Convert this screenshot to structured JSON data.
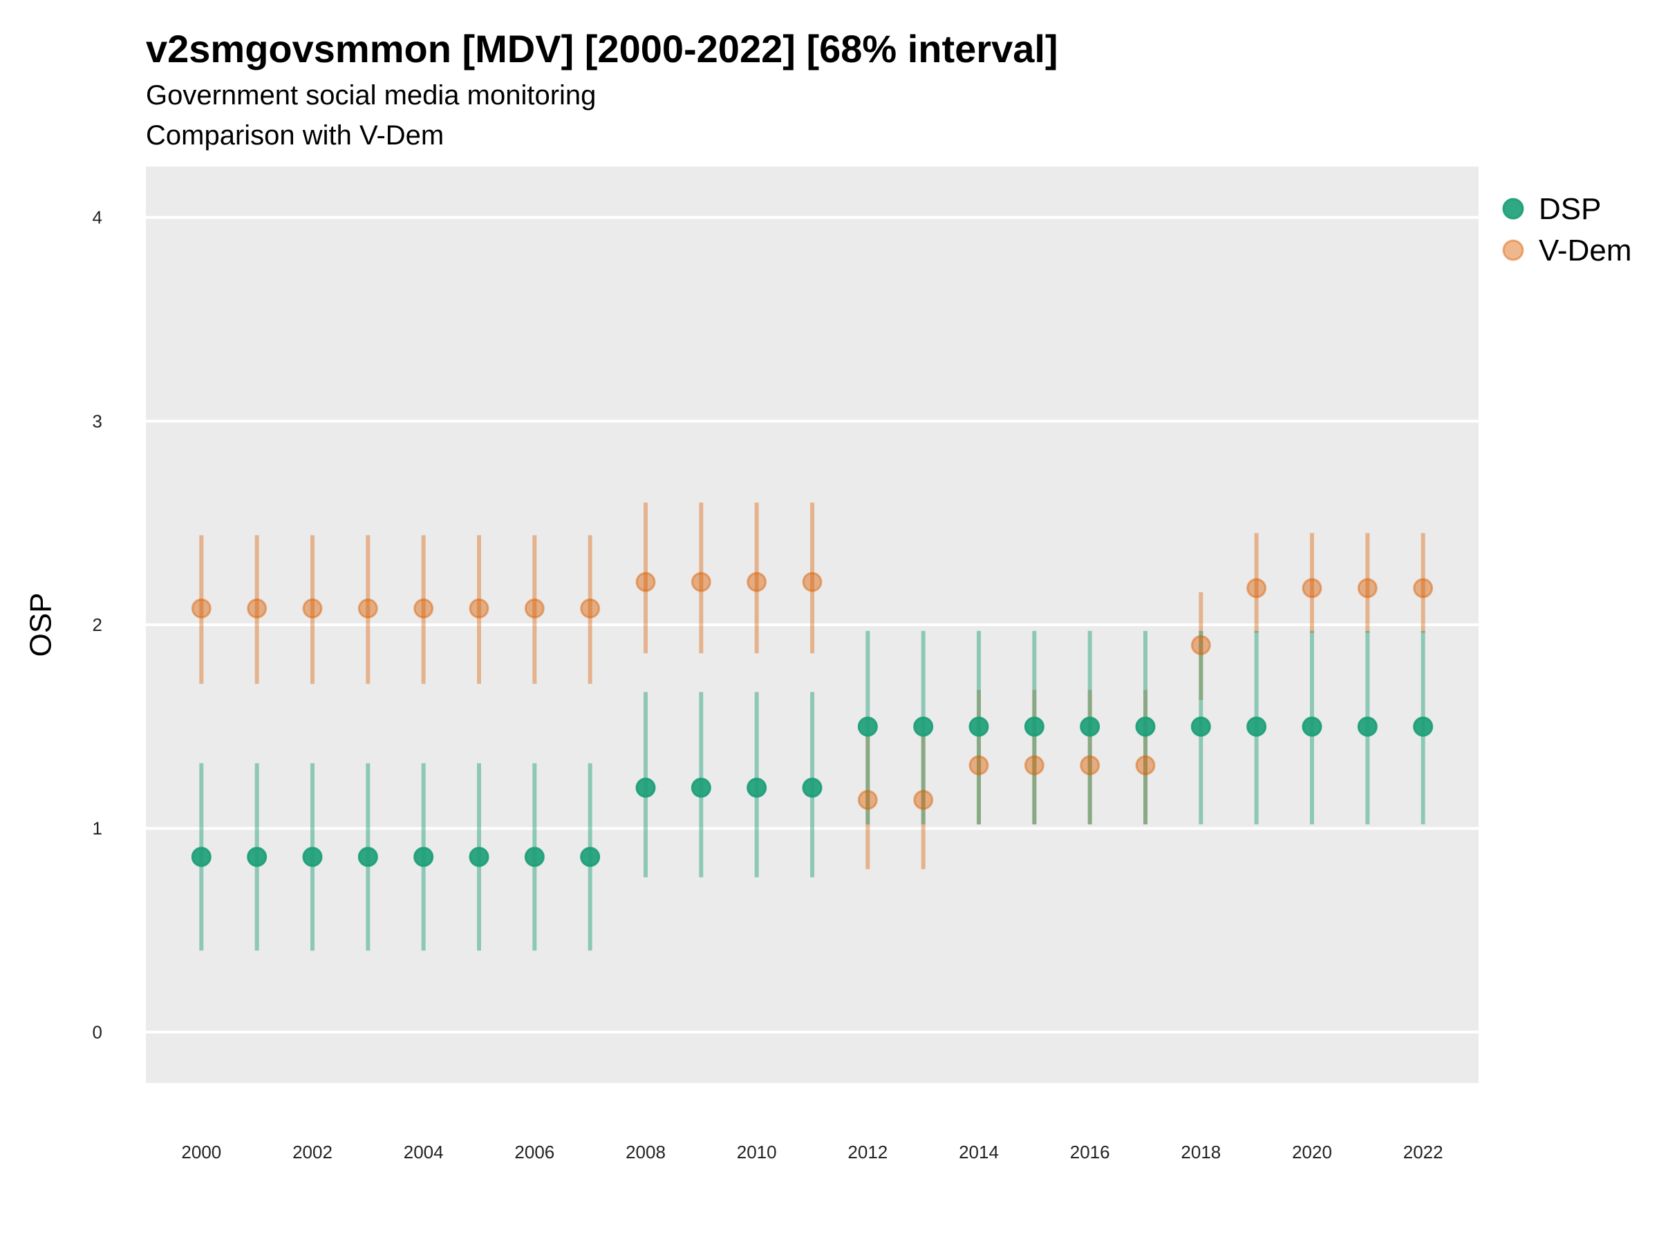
{
  "title": "v2smgovsmmon [MDV] [2000-2022] [68% interval]",
  "subtitle": "Government social media monitoring",
  "caption": "Comparison with V-Dem",
  "chart_data": {
    "type": "scatter",
    "ylabel": "OSP",
    "xlabel": "",
    "ylim": [
      -0.25,
      4.25
    ],
    "yticks": [
      0,
      1,
      2,
      3,
      4
    ],
    "xlim": [
      1999.0,
      2023.0
    ],
    "xticks": [
      2000,
      2002,
      2004,
      2006,
      2008,
      2010,
      2012,
      2014,
      2016,
      2018,
      2020,
      2022
    ],
    "grid": true,
    "legend_position": "right",
    "x": [
      2000,
      2001,
      2002,
      2003,
      2004,
      2005,
      2006,
      2007,
      2008,
      2009,
      2010,
      2011,
      2012,
      2013,
      2014,
      2015,
      2016,
      2017,
      2018,
      2019,
      2020,
      2021,
      2022
    ],
    "series": [
      {
        "name": "DSP",
        "color": "#1b9e77",
        "values": [
          0.86,
          0.86,
          0.86,
          0.86,
          0.86,
          0.86,
          0.86,
          0.86,
          1.2,
          1.2,
          1.2,
          1.2,
          1.5,
          1.5,
          1.5,
          1.5,
          1.5,
          1.5,
          1.5,
          1.5,
          1.5,
          1.5,
          1.5
        ],
        "lower": [
          0.4,
          0.4,
          0.4,
          0.4,
          0.4,
          0.4,
          0.4,
          0.4,
          0.76,
          0.76,
          0.76,
          0.76,
          1.02,
          1.02,
          1.02,
          1.02,
          1.02,
          1.02,
          1.02,
          1.02,
          1.02,
          1.02,
          1.02
        ],
        "upper": [
          1.32,
          1.32,
          1.32,
          1.32,
          1.32,
          1.32,
          1.32,
          1.32,
          1.67,
          1.67,
          1.67,
          1.67,
          1.97,
          1.97,
          1.97,
          1.97,
          1.97,
          1.97,
          1.97,
          1.97,
          1.97,
          1.97,
          1.97
        ]
      },
      {
        "name": "V-Dem",
        "color": "#d95f02",
        "values": [
          2.08,
          2.08,
          2.08,
          2.08,
          2.08,
          2.08,
          2.08,
          2.08,
          2.21,
          2.21,
          2.21,
          2.21,
          1.14,
          1.14,
          1.31,
          1.31,
          1.31,
          1.31,
          1.9,
          2.18,
          2.18,
          2.18,
          2.18
        ],
        "lower": [
          1.71,
          1.71,
          1.71,
          1.71,
          1.71,
          1.71,
          1.71,
          1.71,
          1.86,
          1.86,
          1.86,
          1.86,
          0.8,
          0.8,
          1.02,
          1.02,
          1.02,
          1.02,
          1.63,
          1.96,
          1.96,
          1.96,
          1.96
        ],
        "upper": [
          2.44,
          2.44,
          2.44,
          2.44,
          2.44,
          2.44,
          2.44,
          2.44,
          2.6,
          2.6,
          2.6,
          2.6,
          1.46,
          1.46,
          1.68,
          1.68,
          1.68,
          1.68,
          2.16,
          2.45,
          2.45,
          2.45,
          2.45
        ]
      }
    ]
  }
}
